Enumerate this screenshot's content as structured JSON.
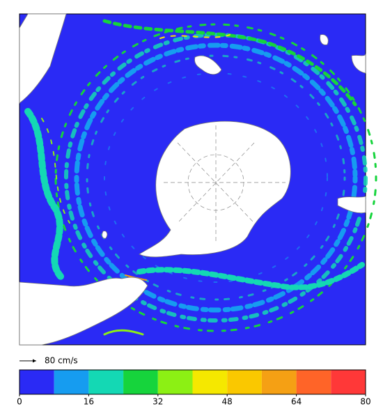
{
  "map": {
    "reference_arrow": {
      "label": "80 cm/s"
    },
    "colorbar": {
      "bounds": [
        0,
        8,
        16,
        24,
        32,
        40,
        48,
        56,
        64,
        72,
        80
      ],
      "colors": [
        "#2a2af5",
        "#169cf0",
        "#14d8b4",
        "#16d43c",
        "#8cf014",
        "#f5e800",
        "#fac800",
        "#f5a014",
        "#ff6428",
        "#ff3838"
      ],
      "ticks": [
        0,
        16,
        32,
        48,
        64,
        80
      ]
    }
  }
}
